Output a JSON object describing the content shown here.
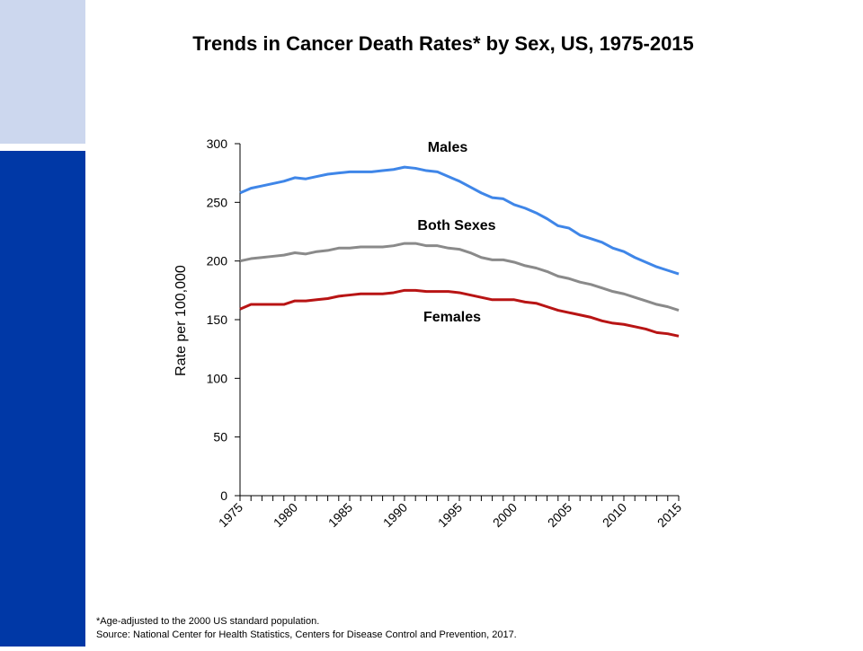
{
  "chart_data": {
    "type": "line",
    "title": "Trends in Cancer Death Rates* by Sex, US, 1975-2015",
    "ylabel": "Rate per 100,000",
    "x": [
      1975,
      1976,
      1977,
      1978,
      1979,
      1980,
      1981,
      1982,
      1983,
      1984,
      1985,
      1986,
      1987,
      1988,
      1989,
      1990,
      1991,
      1992,
      1993,
      1994,
      1995,
      1996,
      1997,
      1998,
      1999,
      2000,
      2001,
      2002,
      2003,
      2004,
      2005,
      2006,
      2007,
      2008,
      2009,
      2010,
      2011,
      2012,
      2013,
      2014,
      2015
    ],
    "series": [
      {
        "name": "Males",
        "color": "#3f86e8",
        "values": [
          258,
          262,
          264,
          266,
          268,
          271,
          270,
          272,
          274,
          275,
          276,
          276,
          276,
          277,
          278,
          280,
          279,
          277,
          276,
          272,
          268,
          263,
          258,
          254,
          253,
          248,
          245,
          241,
          236,
          230,
          228,
          222,
          219,
          216,
          211,
          208,
          203,
          199,
          195,
          192,
          189
        ]
      },
      {
        "name": "Both Sexes",
        "color": "#8a8a8a",
        "values": [
          200,
          202,
          203,
          204,
          205,
          207,
          206,
          208,
          209,
          211,
          211,
          212,
          212,
          212,
          213,
          215,
          215,
          213,
          213,
          211,
          210,
          207,
          203,
          201,
          201,
          199,
          196,
          194,
          191,
          187,
          185,
          182,
          180,
          177,
          174,
          172,
          169,
          166,
          163,
          161,
          158
        ]
      },
      {
        "name": "Females",
        "color": "#b81414",
        "values": [
          159,
          163,
          163,
          163,
          163,
          166,
          166,
          167,
          168,
          170,
          171,
          172,
          172,
          172,
          173,
          175,
          175,
          174,
          174,
          174,
          173,
          171,
          169,
          167,
          167,
          167,
          165,
          164,
          161,
          158,
          156,
          154,
          152,
          149,
          147,
          146,
          144,
          142,
          139,
          138,
          136
        ]
      }
    ],
    "xlim": [
      1975,
      2015
    ],
    "xticks": [
      1975,
      1980,
      1985,
      1990,
      1995,
      2000,
      2005,
      2010,
      2015
    ],
    "ylim": [
      0,
      300
    ],
    "yticks": [
      0,
      50,
      100,
      150,
      200,
      250,
      300
    ],
    "footnotes": [
      "*Age-adjusted to the 2000 US standard population.",
      "Source: National Center for Health Statistics, Centers for Disease Control and Prevention, 2017."
    ]
  }
}
